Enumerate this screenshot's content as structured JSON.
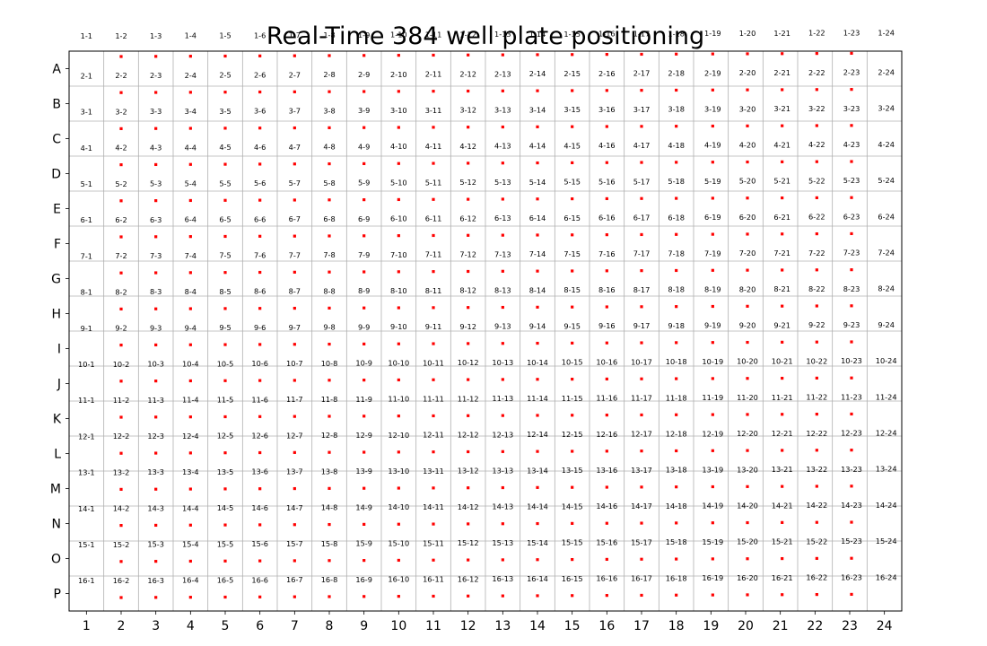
{
  "chart_data": {
    "type": "scatter",
    "title": "Real-Time 384 well plate positioning",
    "xlabel": "",
    "ylabel": "",
    "grid": true,
    "xlim": [
      0.5,
      24.5
    ],
    "ylim_rows": [
      "A",
      "P"
    ],
    "x_ticks": [
      "1",
      "2",
      "3",
      "4",
      "5",
      "6",
      "7",
      "8",
      "9",
      "10",
      "11",
      "12",
      "13",
      "14",
      "15",
      "16",
      "17",
      "18",
      "19",
      "20",
      "21",
      "22",
      "23",
      "24"
    ],
    "y_ticks": [
      "A",
      "B",
      "C",
      "D",
      "E",
      "F",
      "G",
      "H",
      "I",
      "J",
      "K",
      "L",
      "M",
      "N",
      "O",
      "P"
    ],
    "point_color": "#ff0000",
    "label_grid": {
      "rows": 16,
      "cols": 24,
      "format": "row-col",
      "row_range": [
        1,
        16
      ],
      "col_range": [
        1,
        24
      ]
    }
  }
}
